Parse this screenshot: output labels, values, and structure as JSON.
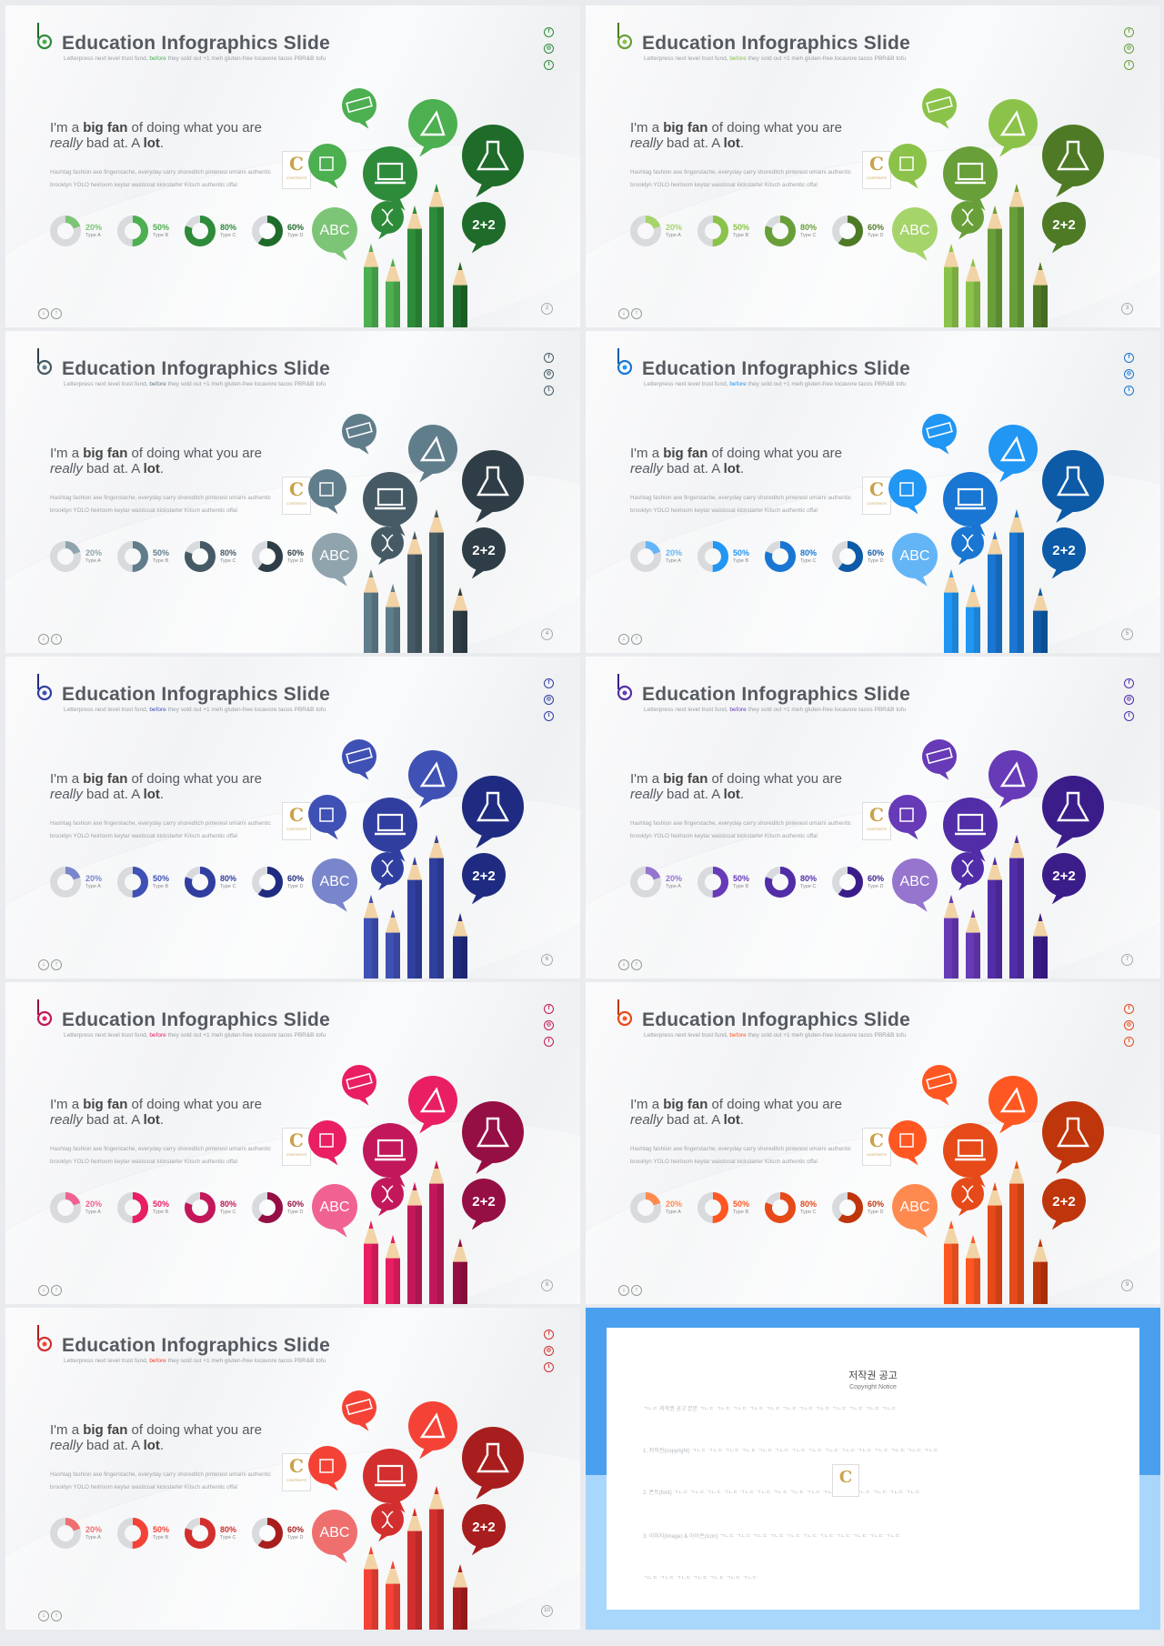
{
  "slide_common": {
    "title": "Education Infographics Slide",
    "subtitle_before": "Letterpress next level trust fund,",
    "subtitle_highlight": "before",
    "subtitle_after": "they sold out +1 meh gluten-free locavore tacos PBR&B tofu",
    "quote_l1_a": "I'm a ",
    "quote_l1_b": "big fan",
    "quote_l1_c": " of doing what you are",
    "quote_l2_a": "really",
    "quote_l2_b": " bad at. A ",
    "quote_l2_c": "lot",
    "quote_l2_d": ".",
    "body_text": "Hashtag fashion axe fingerstache, everyday carry shoreditch pinterest umami authentic brooklyn YOLO heirloom keytar waistcoat kickstarter Kitsch authentic offal",
    "badge_letter": "C",
    "badge_text": "CONTENTS",
    "bubble_abc": "ABC",
    "bubble_math": "2+2",
    "social_icons": [
      "facebook-icon",
      "instagram-icon",
      "twitter-icon"
    ],
    "nav_icons": [
      "arrow-down-icon",
      "arrow-up-icon"
    ],
    "donuts": [
      {
        "value": 0.2,
        "pct_label": "20%",
        "type_label": "Type A"
      },
      {
        "value": 0.5,
        "pct_label": "50%",
        "type_label": "Type B"
      },
      {
        "value": 0.8,
        "pct_label": "80%",
        "type_label": "Type C"
      },
      {
        "value": 0.6,
        "pct_label": "60%",
        "type_label": "Type D"
      }
    ]
  },
  "slides": [
    {
      "page": "2",
      "colors": [
        "#7cc576",
        "#4caf50",
        "#2e8b3a",
        "#1f6b2a"
      ]
    },
    {
      "page": "3",
      "colors": [
        "#a5d46a",
        "#8bc34a",
        "#689f38",
        "#4e7a26"
      ]
    },
    {
      "page": "4",
      "colors": [
        "#90a4ae",
        "#607d8b",
        "#455a64",
        "#2f3e46"
      ]
    },
    {
      "page": "5",
      "colors": [
        "#64b5f6",
        "#2196f3",
        "#1976d2",
        "#0d5aa7"
      ]
    },
    {
      "page": "6",
      "colors": [
        "#7986cb",
        "#3f51b5",
        "#303f9f",
        "#1f2b80"
      ]
    },
    {
      "page": "7",
      "colors": [
        "#9575cd",
        "#673ab7",
        "#512da8",
        "#3b1d8a"
      ]
    },
    {
      "page": "8",
      "colors": [
        "#f06292",
        "#e91e63",
        "#c2185b",
        "#960f44"
      ]
    },
    {
      "page": "9",
      "colors": [
        "#ff8a50",
        "#ff5722",
        "#e64a19",
        "#bf360c"
      ]
    },
    {
      "page": "10",
      "colors": [
        "#ef6f6f",
        "#f44336",
        "#d32f2f",
        "#a81e1e"
      ]
    }
  ],
  "copyright_notice": {
    "title_ko": "저작권 공고",
    "title_en": "Copyright Notice",
    "badge_letter": "C",
    "paragraphs": [
      "ㄱㄴㄷ 저작권 공고 본문 ㄱㄴㄷ ㄱㄴㄷ ㄱㄴㄷ ㄱㄴㄷ ㄱㄴㄷ ㄱㄴㄷ ㄱㄴㄷ ㄱㄴㄷ ㄱㄴㄷ ㄱㄴㄷ ㄱㄴㄷ ㄱㄴㄷ",
      "1. 저작권(copyright) ㄱㄴㄷ ㄱㄴㄷ ㄱㄴㄷ ㄱㄴㄷ ㄱㄴㄷ ㄱㄴㄷ ㄱㄴㄷ ㄱㄴㄷ ㄱㄴㄷ ㄱㄴㄷ ㄱㄴㄷ ㄱㄴㄷ ㄱㄴㄷ ㄱㄴㄷ ㄱㄴㄷ",
      "2. 폰트(font) ㄱㄴㄷ ㄱㄴㄷ ㄱㄴㄷ ㄱㄴㄷ ㄱㄴㄷ ㄱㄴㄷ ㄱㄴㄷ ㄱㄴㄷ ㄱㄴㄷ ㄱㄴㄷ ㄱㄴㄷ ㄱㄴㄷ ㄱㄴㄷ ㄱㄴㄷ ㄱㄴㄷ",
      "3. 이미지(image) & 아이콘(icon) ㄱㄴㄷ ㄱㄴㄷ ㄱㄴㄷ ㄱㄴㄷ ㄱㄴㄷ ㄱㄴㄷ ㄱㄴㄷ ㄱㄴㄷ ㄱㄴㄷ ㄱㄴㄷ ㄱㄴㄷ",
      "ㄱㄴㄷ ㄱㄴㄷ ㄱㄴㄷ ㄱㄴㄷ ㄱㄴㄷ ㄱㄴㄷ ㄱㄴㄷ"
    ]
  }
}
